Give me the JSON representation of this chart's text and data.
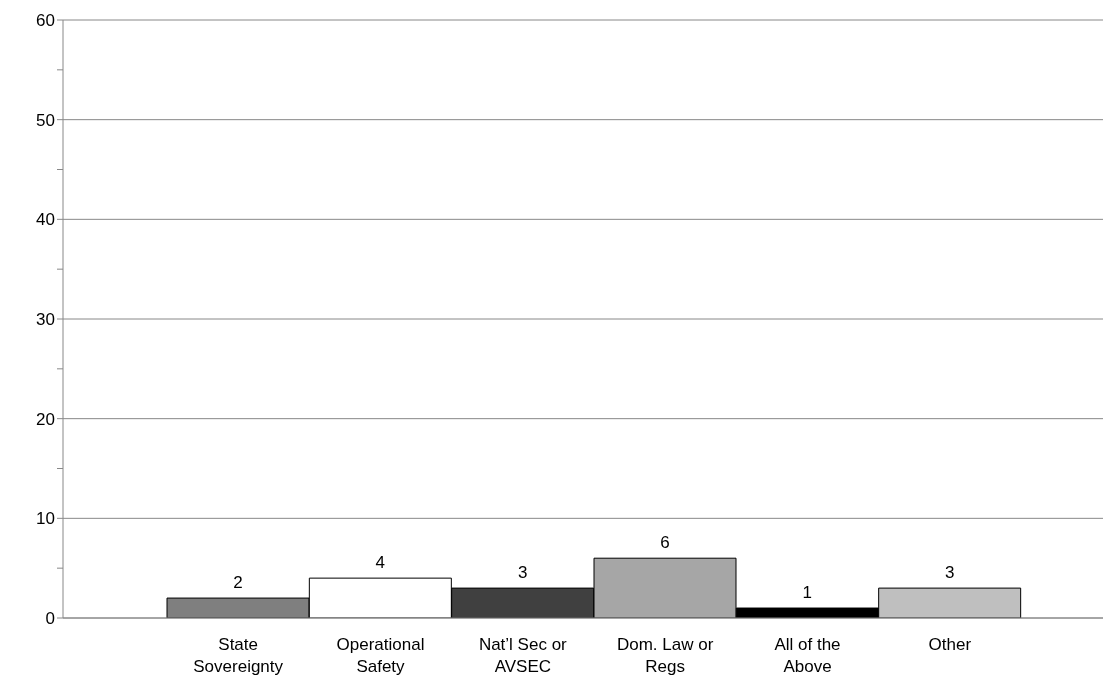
{
  "chart_data": {
    "type": "bar",
    "categories": [
      "State Sovereignty",
      "Operational Safety",
      "Nat’l Sec or AVSEC",
      "Dom. Law or Regs",
      "All of the Above",
      "Other"
    ],
    "values": [
      2,
      4,
      3,
      6,
      1,
      3
    ],
    "colors": [
      "#7f7f7f",
      "#ffffff",
      "#404040",
      "#a6a6a6",
      "#000000",
      "#bfbfbf"
    ],
    "ylim": [
      0,
      60
    ],
    "yticks": [
      0,
      {
        "value": 5,
        "label": null
      },
      10,
      {
        "value": 15,
        "label": null
      },
      20,
      {
        "value": 25,
        "label": null
      },
      30,
      {
        "value": 35,
        "label": null
      },
      40,
      {
        "value": 45,
        "label": null
      },
      50,
      {
        "value": 55,
        "label": null
      },
      60
    ],
    "grid": "y",
    "data_labels": true
  }
}
